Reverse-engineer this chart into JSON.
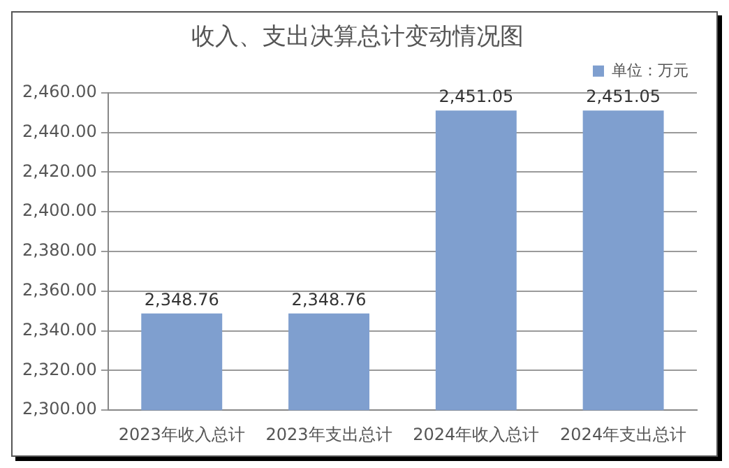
{
  "chart_data": {
    "type": "bar",
    "title": "收入、支出决算总计变动情况图",
    "categories": [
      "2023年收入总计",
      "2023年支出总计",
      "2024年收入总计",
      "2024年支出总计"
    ],
    "series": [
      {
        "name": "单位：万元",
        "color": "#7f9fcf",
        "values": [
          2348.76,
          2348.76,
          2451.05,
          2451.05
        ],
        "value_labels": [
          "2,348.76",
          "2,348.76",
          "2,451.05",
          "2,451.05"
        ]
      }
    ],
    "ylim": [
      2300,
      2460
    ],
    "yticks": [
      {
        "value": 2300,
        "label": "2,300.00"
      },
      {
        "value": 2320,
        "label": "2,320.00"
      },
      {
        "value": 2340,
        "label": "2,340.00"
      },
      {
        "value": 2360,
        "label": "2,360.00"
      },
      {
        "value": 2380,
        "label": "2,380.00"
      },
      {
        "value": 2400,
        "label": "2,400.00"
      },
      {
        "value": 2420,
        "label": "2,420.00"
      },
      {
        "value": 2440,
        "label": "2,440.00"
      },
      {
        "value": 2460,
        "label": "2,460.00"
      }
    ],
    "grid": "y",
    "legend": "top right"
  }
}
